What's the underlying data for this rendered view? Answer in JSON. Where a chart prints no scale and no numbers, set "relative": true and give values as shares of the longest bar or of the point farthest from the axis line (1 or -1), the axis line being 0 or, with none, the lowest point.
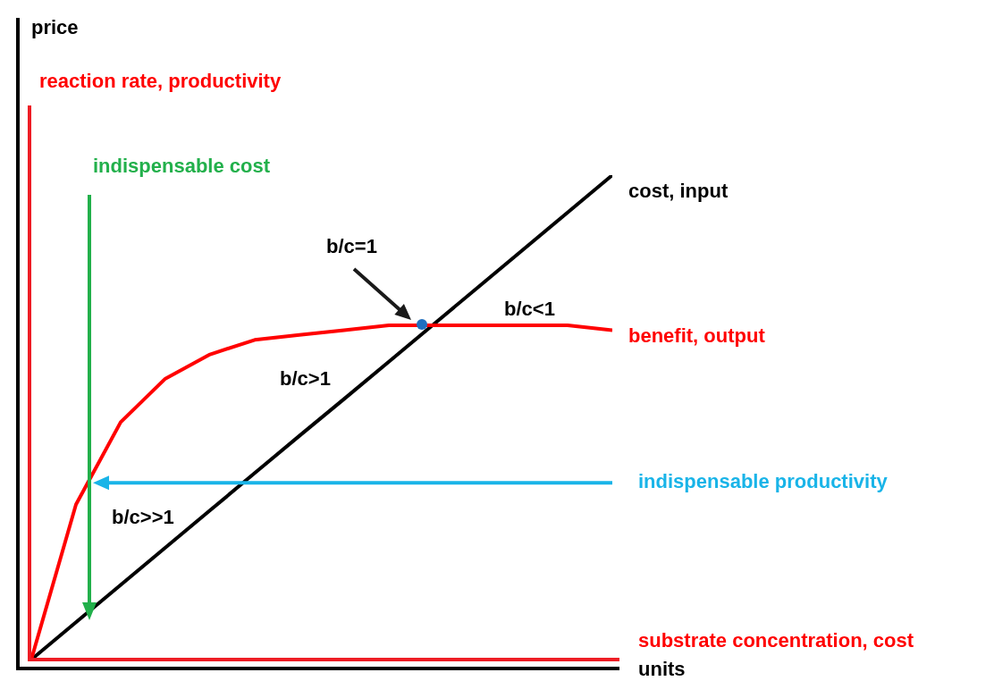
{
  "chart_data": {
    "type": "line",
    "relative": true,
    "xlabel": "units",
    "marker": "none",
    "line_style": "solid",
    "categories": [
      null,
      null,
      null,
      null,
      null,
      null,
      null,
      null,
      null,
      null,
      null,
      null,
      null,
      null
    ],
    "series": [
      {
        "name": "cost, input",
        "color": "#000000",
        "values": [
          0,
          0.077,
          0.154,
          0.231,
          0.308,
          0.385,
          0.462,
          0.538,
          0.615,
          0.692,
          0.769,
          0.846,
          0.923,
          1
        ]
      },
      {
        "name": "benefit, output",
        "color": "#ff0000",
        "values": [
          0,
          0.32,
          0.49,
          0.58,
          0.63,
          0.66,
          0.67,
          0.68,
          0.69,
          0.69,
          0.69,
          0.69,
          0.69,
          0.68
        ]
      }
    ],
    "ref_lines": [
      {
        "axis": "y",
        "value": 0.365,
        "label": "indispensable productivity",
        "color": "#19b4e8"
      }
    ],
    "annotations": [
      "reaction rate, productivity",
      "substrate concentration, cost",
      "indispensable cost",
      "price",
      "b/c=1",
      "b/c<1",
      "b/c>1",
      "b/c>>1"
    ]
  }
}
